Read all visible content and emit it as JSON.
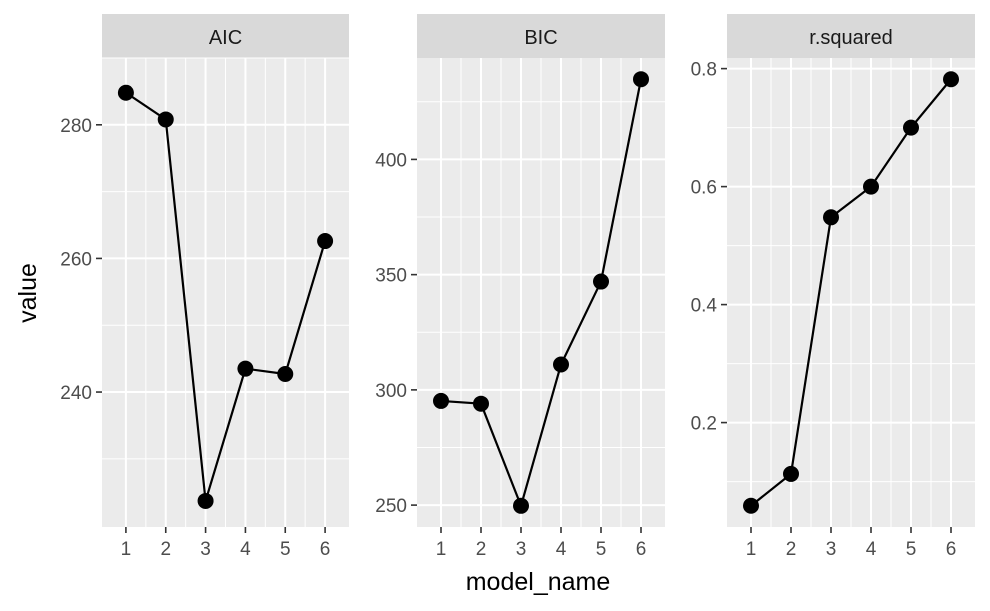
{
  "chart_data": {
    "type": "line",
    "xlabel": "model_name",
    "ylabel": "value",
    "grid": true,
    "facets": [
      {
        "name": "AIC",
        "categories": [
          "1",
          "2",
          "3",
          "4",
          "5",
          "6"
        ],
        "values": [
          284.8,
          280.8,
          223.7,
          243.5,
          242.7,
          262.6
        ],
        "ylim": [
          219.8,
          290.0
        ],
        "yticks": [
          240,
          260,
          280
        ],
        "yminor": [
          230,
          250,
          270,
          290
        ]
      },
      {
        "name": "BIC",
        "categories": [
          "1",
          "2",
          "3",
          "4",
          "5",
          "6"
        ],
        "values": [
          295.2,
          294.0,
          249.7,
          311.0,
          347.0,
          434.8
        ],
        "ylim": [
          240.5,
          444.0
        ],
        "yticks": [
          250,
          300,
          350,
          400
        ],
        "yminor": [
          275,
          325,
          375,
          425
        ]
      },
      {
        "name": "r.squared",
        "categories": [
          "1",
          "2",
          "3",
          "4",
          "5",
          "6"
        ],
        "values": [
          0.059,
          0.113,
          0.548,
          0.6,
          0.7,
          0.782
        ],
        "ylim": [
          0.023,
          0.818
        ],
        "yticks": [
          0.2,
          0.4,
          0.6,
          0.8
        ],
        "ytick_labels": [
          "0.2",
          "0.4",
          "0.6",
          "0.8"
        ],
        "yminor": [
          0.1,
          0.3,
          0.5,
          0.7
        ]
      }
    ]
  }
}
